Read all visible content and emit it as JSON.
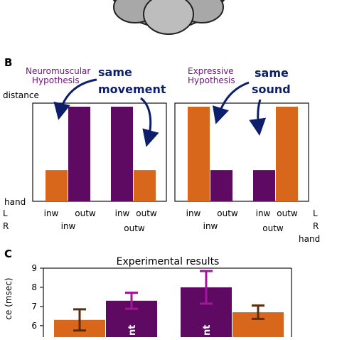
{
  "panel_labels": {
    "b": "B",
    "c": "C"
  },
  "panel_b": {
    "y_top_label": "distance",
    "y_bottom_label": "hand",
    "row_labels": {
      "left": "L",
      "right": "R",
      "right_hand": "hand"
    },
    "left_plot": {
      "title_line1": "Neuromuscular",
      "title_line2": "Hypothesis",
      "annotation_line1": "same",
      "annotation_line2": "movement",
      "l_labels": [
        "inw",
        "outw",
        "inw",
        "outw"
      ],
      "r_labels": [
        "inw",
        "outw"
      ]
    },
    "right_plot": {
      "title_line1": "Expressive",
      "title_line2": "Hypothesis",
      "annotation_line1": "same",
      "annotation_line2": "sound",
      "l_labels": [
        "inw",
        "outw",
        "inw",
        "outw"
      ],
      "r_labels": [
        "inw",
        "outw"
      ]
    }
  },
  "colors": {
    "orange": "#D9671B",
    "purple": "#5E0A63",
    "title_purple": "#6A1479",
    "navy": "#0D1F6B",
    "error_brown": "#5A2D0C",
    "error_magenta": "#A3169B"
  },
  "chart_data": [
    {
      "type": "bar",
      "title": "",
      "categories": [
        "L inw / R inw",
        "L outw / R inw",
        "L inw / R outw",
        "L outw / R outw"
      ],
      "values": [
        0.33,
        1.0,
        1.0,
        0.33
      ],
      "bar_colors": [
        "orange",
        "purple",
        "purple",
        "orange"
      ],
      "ylabel": "distance",
      "ylim": [
        0,
        1
      ]
    },
    {
      "type": "bar",
      "title": "",
      "categories": [
        "L inw / R inw",
        "L outw / R inw",
        "L inw / R outw",
        "L outw / R outw"
      ],
      "values": [
        1.0,
        0.33,
        0.33,
        1.0
      ],
      "bar_colors": [
        "orange",
        "purple",
        "purple",
        "orange"
      ],
      "ylabel": "distance",
      "ylim": [
        0,
        1
      ]
    },
    {
      "type": "bar",
      "title": "Experimental results",
      "ylabel": "ce (msec)",
      "ylim": [
        5.4,
        9
      ],
      "y_ticks": [
        6,
        7,
        8,
        9
      ],
      "values": [
        6.3,
        7.3,
        8.0,
        6.7
      ],
      "errors": [
        0.55,
        0.42,
        0.85,
        0.35
      ],
      "bar_colors": [
        "orange",
        "purple",
        "purple",
        "orange"
      ],
      "error_colors": [
        "error_brown",
        "error_magenta",
        "error_magenta",
        "error_brown"
      ],
      "bar_inner_text": [
        "nt",
        "nt"
      ]
    }
  ]
}
